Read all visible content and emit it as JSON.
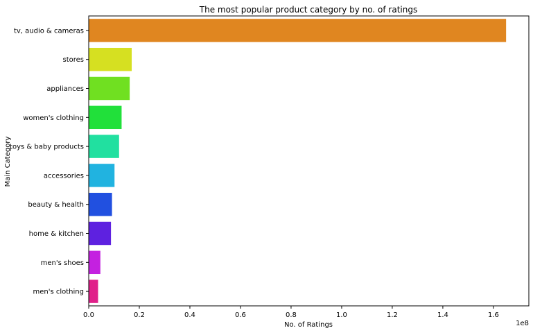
{
  "chart_data": {
    "type": "bar",
    "orientation": "horizontal",
    "title": "The most popular product category by no. of ratings",
    "xlabel": "No. of Ratings",
    "ylabel": "Main Category",
    "x_scale_label": "1e8",
    "xlim": [
      0,
      1.74
    ],
    "x_ticks": [
      0.0,
      0.2,
      0.4,
      0.6,
      0.8,
      1.0,
      1.2,
      1.4,
      1.6
    ],
    "x_tick_labels": [
      "0.0",
      "0.2",
      "0.4",
      "0.6",
      "0.8",
      "1.0",
      "1.2",
      "1.4",
      "1.6"
    ],
    "grid": false,
    "categories": [
      "tv, audio & cameras",
      "stores",
      "appliances",
      "women's clothing",
      "toys & baby products",
      "accessories",
      "beauty & health",
      "home & kitchen",
      "men's shoes",
      "men's clothing"
    ],
    "values": [
      1.65,
      0.17,
      0.162,
      0.13,
      0.12,
      0.102,
      0.092,
      0.088,
      0.046,
      0.037
    ],
    "colors": [
      "#e08620",
      "#d6e021",
      "#70e021",
      "#21e03a",
      "#21e0a0",
      "#21b3e0",
      "#2150e0",
      "#5e21e0",
      "#c421e0",
      "#e0218a"
    ]
  }
}
